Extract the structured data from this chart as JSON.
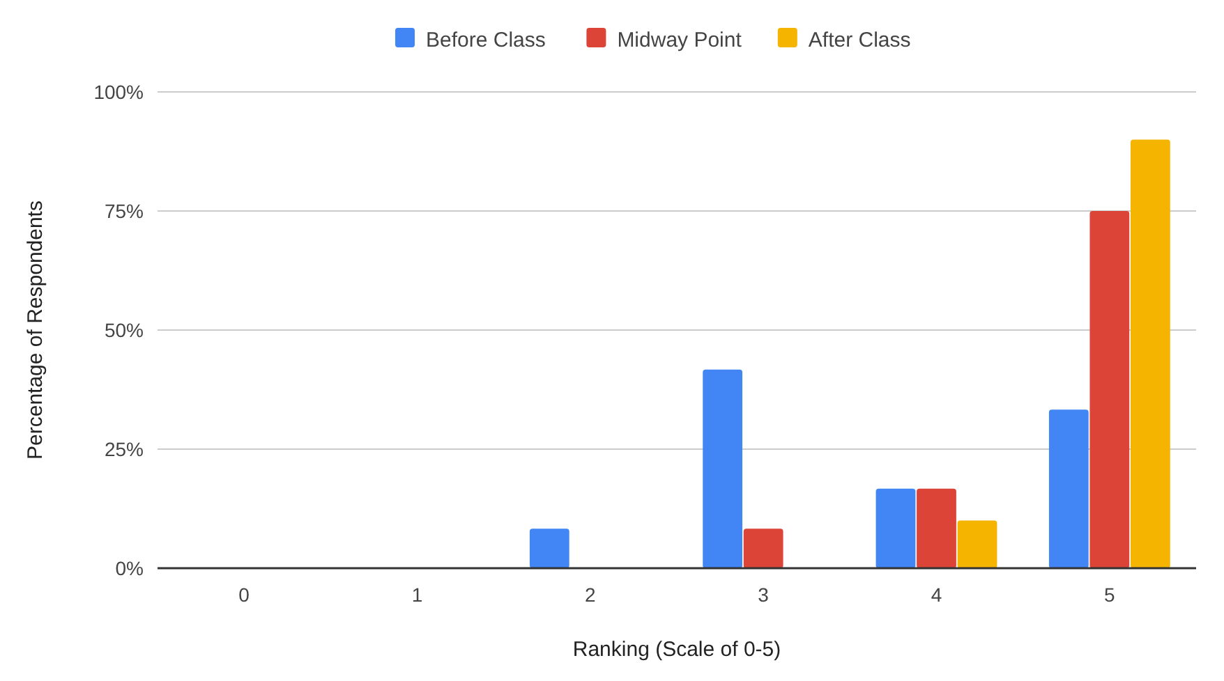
{
  "chart_data": {
    "type": "bar",
    "xlabel": "Ranking (Scale of 0-5)",
    "ylabel": "Percentage of Respondents",
    "categories": [
      "0",
      "1",
      "2",
      "3",
      "4",
      "5"
    ],
    "series": [
      {
        "name": "Before Class",
        "color": "#4285f4",
        "values": [
          0,
          0,
          8.3,
          41.7,
          16.7,
          33.3
        ]
      },
      {
        "name": "Midway Point",
        "color": "#db4437",
        "values": [
          0,
          0,
          0,
          8.3,
          16.7,
          75
        ]
      },
      {
        "name": "After Class",
        "color": "#f4b400",
        "values": [
          0,
          0,
          0,
          0,
          10,
          90
        ]
      }
    ],
    "ylim": [
      0,
      100
    ],
    "yticks": [
      {
        "value": 0,
        "label": "0%"
      },
      {
        "value": 25,
        "label": "25%"
      },
      {
        "value": 50,
        "label": "50%"
      },
      {
        "value": 75,
        "label": "75%"
      },
      {
        "value": 100,
        "label": "100%"
      }
    ],
    "grid": "y",
    "legend": "top"
  }
}
